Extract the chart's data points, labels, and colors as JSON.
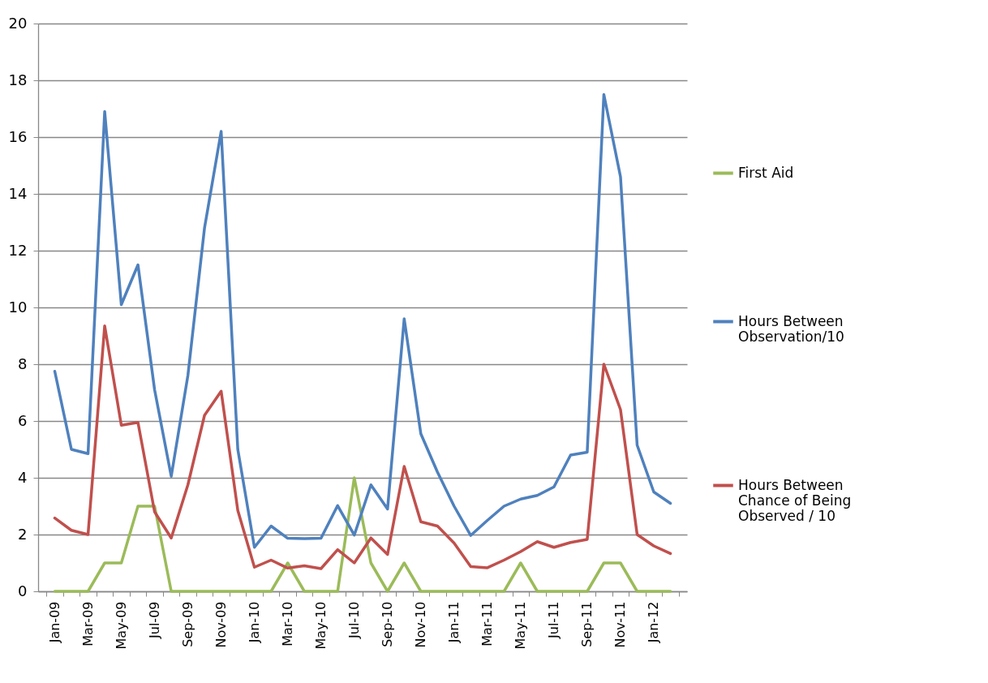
{
  "chart_data": {
    "type": "line",
    "categories": [
      "Jan-09",
      null,
      "Mar-09",
      null,
      "May-09",
      null,
      "Jul-09",
      null,
      "Sep-09",
      null,
      "Nov-09",
      null,
      "Jan-10",
      null,
      "Mar-10",
      null,
      "May-10",
      null,
      "Jul-10",
      null,
      "Sep-10",
      null,
      "Nov-10",
      null,
      "Jan-11",
      null,
      "Mar-11",
      null,
      "May-11",
      null,
      "Jul-11",
      null,
      "Sep-11",
      null,
      "Nov-11",
      null,
      "Jan-12",
      null
    ],
    "series": [
      {
        "name": "First Aid",
        "color": "#9bbb59",
        "values": [
          0,
          0,
          0,
          1,
          1,
          3,
          3,
          0,
          0,
          0,
          0,
          0,
          0,
          0,
          1,
          0,
          0,
          0,
          4,
          1,
          0,
          1,
          0,
          0,
          0,
          0,
          0,
          0,
          1,
          0,
          0,
          0,
          0,
          1,
          1,
          0,
          0,
          0
        ]
      },
      {
        "name": "Hours Between Observation/10",
        "color": "#4f81bd",
        "values": [
          7.75,
          5.0,
          4.85,
          16.9,
          10.1,
          11.5,
          7.1,
          4.05,
          7.6,
          12.8,
          16.2,
          5.0,
          1.55,
          2.3,
          1.87,
          1.86,
          1.87,
          3.02,
          1.98,
          3.75,
          2.9,
          9.6,
          5.55,
          4.2,
          3.0,
          1.97,
          2.5,
          3.0,
          3.25,
          3.38,
          3.68,
          4.8,
          4.9,
          17.5,
          14.6,
          5.15,
          3.5,
          3.1
        ]
      },
      {
        "name": "Hours Between Chance of Being Observed / 10",
        "color": "#c0504d",
        "values": [
          2.58,
          2.15,
          2.0,
          9.35,
          5.85,
          5.95,
          2.8,
          1.88,
          3.75,
          6.2,
          7.05,
          2.85,
          0.85,
          1.1,
          0.82,
          0.9,
          0.8,
          1.47,
          1.0,
          1.88,
          1.3,
          4.4,
          2.45,
          2.3,
          1.7,
          0.87,
          0.83,
          1.1,
          1.4,
          1.75,
          1.55,
          1.72,
          1.83,
          8.0,
          6.4,
          2.0,
          1.6,
          1.33
        ]
      }
    ],
    "ylim": [
      0,
      20
    ],
    "yticks": [
      0,
      2,
      4,
      6,
      8,
      10,
      12,
      14,
      16,
      18,
      20
    ],
    "grid": "y",
    "legend": "right",
    "marker": "none",
    "line_style": "solid"
  }
}
